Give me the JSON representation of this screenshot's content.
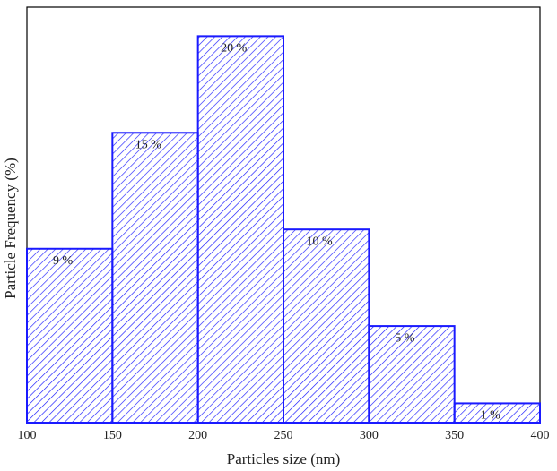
{
  "chart_data": {
    "type": "histogram",
    "xlabel": "Particles size (nm)",
    "ylabel": "Particle Frequency (%)",
    "bins": [
      100,
      150,
      200,
      250,
      300,
      350,
      400
    ],
    "values": [
      9,
      15,
      20,
      10,
      5,
      1
    ],
    "value_labels": [
      "9 %",
      "15 %",
      "20 %",
      "10 %",
      "5 %",
      "1 %"
    ],
    "color": "#1a1aff",
    "xlim": [
      100,
      400
    ],
    "xticks": [
      100,
      150,
      200,
      250,
      300,
      350,
      400
    ],
    "ylim": [
      0,
      21.5
    ]
  }
}
